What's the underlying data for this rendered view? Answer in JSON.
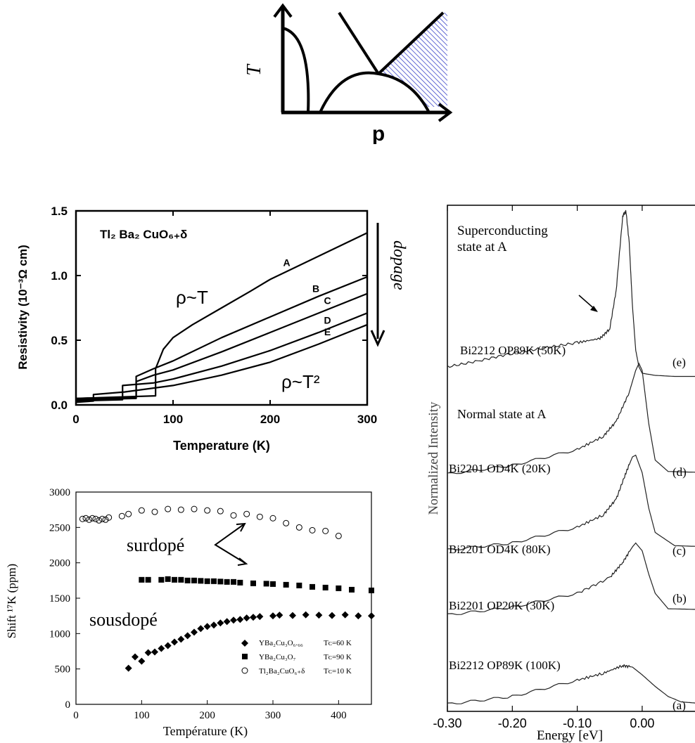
{
  "colors": {
    "ink": "#000000",
    "hatch": "#3a44c8",
    "gray": "#333333"
  },
  "phase": {
    "y_label": "T",
    "x_label": "p"
  },
  "resist": {
    "formula": "Tl₂ Ba₂ CuO₆₊δ",
    "ylabel": "Resistivity  (10⁻³Ω cm)",
    "xlabel": "Temperature  (K)",
    "rho_t": "ρ~T",
    "rho_t2": "ρ~T²",
    "dopage": "dopage"
  },
  "shift": {
    "surdope": "surdopé",
    "sousdope": "sousdopé",
    "ylabel": "Shift ¹⁷K (ppm)",
    "xlabel": "Température (K)",
    "legend": [
      {
        "compound": "YBa₂Cu₃O₆.₆₆",
        "tc": "Tᴄ=60 K"
      },
      {
        "compound": "YBa₂Cu₃O₇",
        "tc": "Tᴄ=90 K"
      },
      {
        "compound": "Tl₂Ba₂CuO₆₊δ",
        "tc": "Tᴄ=10 K"
      }
    ]
  },
  "arpes": {
    "ylabel": "Normalized Intensity",
    "xlabel": "Energy [eV]",
    "sc_state_1": "Superconducting",
    "sc_state_2": "state at A",
    "normal_state": "Normal state at A",
    "spectra": [
      {
        "tag": "(e)",
        "name": "Bi2212 OP89K (50K)"
      },
      {
        "tag": "(d)",
        "name": "Bi2201 OD4K (20K)"
      },
      {
        "tag": "(c)",
        "name": "Bi2201 OD4K (80K)"
      },
      {
        "tag": "(b)",
        "name": "Bi2201 OP20K (30K)"
      },
      {
        "tag": "(a)",
        "name": "Bi2212 OP89K (100K)"
      }
    ]
  },
  "chart_data": [
    {
      "type": "line",
      "title": "",
      "xlabel": "Temperature  (K)",
      "ylabel": "Resistivity  (10⁻³Ω cm)",
      "xlim": [
        0,
        300
      ],
      "ylim": [
        0,
        1.5
      ],
      "xticks": [
        "0",
        "100",
        "200",
        "300"
      ],
      "yticks": [
        "0.0",
        "0.5",
        "1.0",
        "1.5"
      ],
      "series": [
        {
          "name": "A",
          "tc": 82,
          "x": [
            0,
            82,
            82,
            90,
            100,
            120,
            150,
            180,
            200,
            250,
            300
          ],
          "y": [
            0.05,
            0.07,
            0.28,
            0.43,
            0.52,
            0.62,
            0.75,
            0.88,
            0.97,
            1.15,
            1.33
          ]
        },
        {
          "name": "B",
          "tc": 62,
          "x": [
            0,
            62,
            62,
            80,
            100,
            150,
            200,
            250,
            300
          ],
          "y": [
            0.05,
            0.06,
            0.22,
            0.28,
            0.34,
            0.52,
            0.68,
            0.84,
            0.99
          ]
        },
        {
          "name": "C",
          "tc": 62,
          "x": [
            0,
            62,
            62,
            80,
            100,
            150,
            200,
            250,
            300
          ],
          "y": [
            0.04,
            0.05,
            0.18,
            0.23,
            0.27,
            0.41,
            0.56,
            0.71,
            0.86
          ]
        },
        {
          "name": "D",
          "tc": 48,
          "x": [
            0,
            48,
            48,
            80,
            100,
            150,
            200,
            250,
            300
          ],
          "y": [
            0.03,
            0.04,
            0.15,
            0.17,
            0.2,
            0.3,
            0.42,
            0.56,
            0.71
          ]
        },
        {
          "name": "E",
          "tc": 18,
          "x": [
            0,
            18,
            18,
            50,
            100,
            150,
            200,
            250,
            300
          ],
          "y": [
            0.02,
            0.03,
            0.08,
            0.1,
            0.15,
            0.23,
            0.33,
            0.47,
            0.62
          ]
        }
      ]
    },
    {
      "type": "scatter",
      "title": "",
      "xlabel": "Température (K)",
      "ylabel": "Shift ¹⁷K (ppm)",
      "xlim": [
        0,
        450
      ],
      "ylim": [
        0,
        3000
      ],
      "xticks": [
        "0",
        "100",
        "200",
        "300",
        "400"
      ],
      "yticks": [
        "0",
        "500",
        "1000",
        "1500",
        "2000",
        "2500",
        "3000"
      ],
      "series": [
        {
          "name": "YBa₂Cu₃O₆.₆₆  Tᴄ=60 K",
          "marker": "diamond",
          "x": [
            80,
            90,
            100,
            110,
            120,
            130,
            140,
            150,
            160,
            170,
            180,
            190,
            200,
            210,
            220,
            230,
            240,
            250,
            260,
            270,
            280,
            300,
            310,
            330,
            350,
            370,
            390,
            410,
            430,
            450
          ],
          "y": [
            510,
            670,
            610,
            730,
            740,
            790,
            830,
            880,
            920,
            970,
            1020,
            1070,
            1100,
            1120,
            1150,
            1170,
            1190,
            1200,
            1220,
            1230,
            1240,
            1250,
            1260,
            1255,
            1265,
            1260,
            1255,
            1265,
            1250,
            1250
          ]
        },
        {
          "name": "YBa₂Cu₃O₇  Tᴄ=90 K",
          "marker": "square",
          "x": [
            100,
            110,
            130,
            140,
            150,
            160,
            170,
            180,
            190,
            200,
            210,
            220,
            230,
            240,
            250,
            270,
            290,
            300,
            320,
            340,
            360,
            380,
            400,
            420,
            450
          ],
          "y": [
            1760,
            1760,
            1760,
            1770,
            1760,
            1760,
            1750,
            1750,
            1745,
            1740,
            1740,
            1735,
            1730,
            1730,
            1720,
            1710,
            1705,
            1700,
            1690,
            1680,
            1660,
            1650,
            1640,
            1620,
            1610
          ]
        },
        {
          "name": "Tl₂Ba₂CuO₆₊δ  Tᴄ=10 K",
          "marker": "circle-open",
          "x": [
            10,
            15,
            20,
            25,
            30,
            35,
            40,
            45,
            50,
            70,
            80,
            100,
            120,
            140,
            160,
            180,
            200,
            220,
            240,
            260,
            280,
            300,
            320,
            340,
            360,
            380,
            400
          ],
          "y": [
            2620,
            2630,
            2610,
            2630,
            2620,
            2600,
            2620,
            2610,
            2640,
            2660,
            2690,
            2740,
            2720,
            2760,
            2750,
            2760,
            2740,
            2730,
            2670,
            2690,
            2650,
            2630,
            2560,
            2500,
            2460,
            2450,
            2380
          ]
        }
      ]
    },
    {
      "type": "line",
      "title": "",
      "xlabel": "Energy [eV]",
      "ylabel": "Normalized Intensity",
      "xlim": [
        -0.3,
        0.09
      ],
      "xticks": [
        "-0.30",
        "-0.20",
        "-0.10",
        "0.00"
      ],
      "series": [
        {
          "name": "(e)",
          "offset": 4,
          "x": [
            -0.3,
            -0.25,
            -0.2,
            -0.15,
            -0.1,
            -0.065,
            -0.05,
            -0.04,
            -0.03,
            -0.025,
            -0.02,
            -0.015,
            -0.01,
            -0.005,
            0.0,
            0.02,
            0.05,
            0.09
          ],
          "y": [
            0.12,
            0.18,
            0.25,
            0.3,
            0.35,
            0.39,
            0.48,
            0.85,
            1.55,
            1.6,
            1.3,
            0.7,
            0.28,
            0.12,
            0.06,
            0.04,
            0.03,
            0.03
          ]
        },
        {
          "name": "(d)",
          "offset": 3,
          "x": [
            -0.3,
            -0.2,
            -0.1,
            -0.06,
            -0.04,
            -0.02,
            -0.01,
            -0.005,
            0.0,
            0.01,
            0.02,
            0.04,
            0.09
          ],
          "y": [
            0.02,
            0.12,
            0.3,
            0.45,
            0.62,
            0.95,
            1.2,
            1.28,
            1.2,
            0.6,
            0.18,
            0.05,
            0.04
          ]
        },
        {
          "name": "(c)",
          "offset": 2,
          "x": [
            -0.3,
            -0.2,
            -0.1,
            -0.06,
            -0.04,
            -0.025,
            -0.015,
            -0.01,
            0.0,
            0.01,
            0.02,
            0.05,
            0.09
          ],
          "y": [
            0.02,
            0.1,
            0.28,
            0.42,
            0.6,
            0.9,
            1.08,
            1.1,
            0.9,
            0.5,
            0.22,
            0.07,
            0.06
          ]
        },
        {
          "name": "(b)",
          "offset": 1,
          "x": [
            -0.3,
            -0.2,
            -0.1,
            -0.05,
            -0.03,
            -0.015,
            -0.01,
            0.0,
            0.01,
            0.02,
            0.04,
            0.09
          ],
          "y": [
            0.02,
            0.12,
            0.3,
            0.5,
            0.7,
            0.9,
            0.95,
            0.85,
            0.55,
            0.3,
            0.1,
            0.09
          ]
        },
        {
          "name": "(a)",
          "offset": 0,
          "x": [
            -0.3,
            -0.2,
            -0.1,
            -0.06,
            -0.03,
            -0.015,
            0.0,
            0.02,
            0.04,
            0.06,
            0.09
          ],
          "y": [
            0.02,
            0.12,
            0.33,
            0.42,
            0.52,
            0.5,
            0.4,
            0.25,
            0.12,
            0.05,
            0.03
          ]
        }
      ]
    }
  ]
}
